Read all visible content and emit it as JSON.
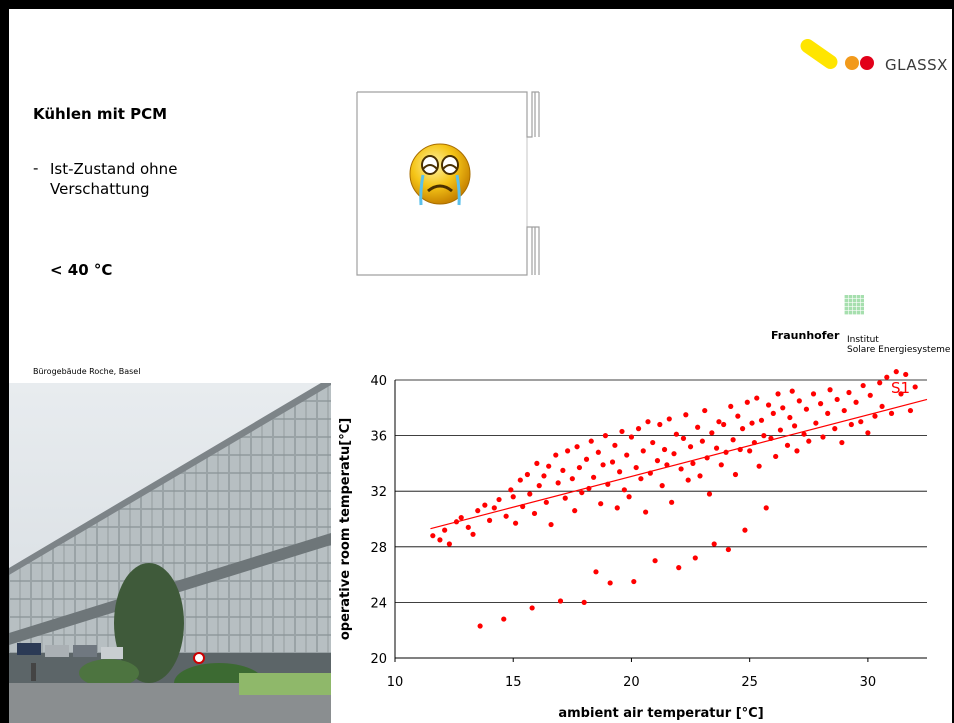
{
  "logo": {
    "text": "GLASSX"
  },
  "title": "Kühlen mit PCM",
  "bullet": {
    "dash": "-",
    "text": "Ist-Zustand ohne Verschattung"
  },
  "temp_limit": "< 40 °C",
  "fraunhofer": {
    "name": "Fraunhofer",
    "institute_line1": "Institut",
    "institute_line2": "Solare Energiesysteme"
  },
  "photo_caption": "Bürogebäude Roche, Basel",
  "chart_data": {
    "type": "scatter",
    "series": [
      {
        "name": "S1",
        "color": "#ff0000"
      }
    ],
    "xlabel": "ambient air temperatur [°C]",
    "ylabel": "operative room temperatu[°C]",
    "xlim": [
      10,
      32.5
    ],
    "ylim": [
      20,
      40
    ],
    "xticks": [
      10,
      15,
      20,
      25,
      30
    ],
    "yticks": [
      20,
      24,
      28,
      32,
      36,
      40
    ],
    "grid": "horizontal",
    "trendline": {
      "x": [
        11.5,
        32.5
      ],
      "y": [
        29.3,
        38.6
      ]
    },
    "points": [
      [
        11.6,
        28.8
      ],
      [
        11.9,
        28.5
      ],
      [
        12.1,
        29.2
      ],
      [
        12.3,
        28.2
      ],
      [
        12.6,
        29.8
      ],
      [
        12.8,
        30.1
      ],
      [
        13.1,
        29.4
      ],
      [
        13.3,
        28.9
      ],
      [
        13.5,
        30.6
      ],
      [
        13.6,
        22.3
      ],
      [
        13.8,
        31.0
      ],
      [
        14.0,
        29.9
      ],
      [
        14.2,
        30.8
      ],
      [
        14.4,
        31.4
      ],
      [
        14.6,
        22.8
      ],
      [
        14.7,
        30.2
      ],
      [
        14.9,
        32.1
      ],
      [
        15.0,
        31.6
      ],
      [
        15.1,
        29.7
      ],
      [
        15.3,
        32.8
      ],
      [
        15.4,
        30.9
      ],
      [
        15.6,
        33.2
      ],
      [
        15.7,
        31.8
      ],
      [
        15.8,
        23.6
      ],
      [
        15.9,
        30.4
      ],
      [
        16.0,
        34.0
      ],
      [
        16.1,
        32.4
      ],
      [
        16.3,
        33.1
      ],
      [
        16.4,
        31.2
      ],
      [
        16.5,
        33.8
      ],
      [
        16.6,
        29.6
      ],
      [
        16.8,
        34.6
      ],
      [
        16.9,
        32.6
      ],
      [
        17.0,
        24.1
      ],
      [
        17.1,
        33.5
      ],
      [
        17.2,
        31.5
      ],
      [
        17.3,
        34.9
      ],
      [
        17.5,
        32.9
      ],
      [
        17.6,
        30.6
      ],
      [
        17.7,
        35.2
      ],
      [
        17.8,
        33.7
      ],
      [
        17.9,
        31.9
      ],
      [
        18.0,
        24.0
      ],
      [
        18.1,
        34.3
      ],
      [
        18.2,
        32.2
      ],
      [
        18.3,
        35.6
      ],
      [
        18.4,
        33.0
      ],
      [
        18.5,
        26.2
      ],
      [
        18.6,
        34.8
      ],
      [
        18.7,
        31.1
      ],
      [
        18.8,
        33.9
      ],
      [
        18.9,
        36.0
      ],
      [
        19.0,
        32.5
      ],
      [
        19.1,
        25.4
      ],
      [
        19.2,
        34.1
      ],
      [
        19.3,
        35.3
      ],
      [
        19.4,
        30.8
      ],
      [
        19.5,
        33.4
      ],
      [
        19.6,
        36.3
      ],
      [
        19.7,
        32.1
      ],
      [
        19.8,
        34.6
      ],
      [
        19.9,
        31.6
      ],
      [
        20.0,
        35.9
      ],
      [
        20.1,
        25.5
      ],
      [
        20.2,
        33.7
      ],
      [
        20.3,
        36.5
      ],
      [
        20.4,
        32.9
      ],
      [
        20.5,
        34.9
      ],
      [
        20.6,
        30.5
      ],
      [
        20.7,
        37.0
      ],
      [
        20.8,
        33.3
      ],
      [
        20.9,
        35.5
      ],
      [
        21.0,
        27.0
      ],
      [
        21.1,
        34.2
      ],
      [
        21.2,
        36.8
      ],
      [
        21.3,
        32.4
      ],
      [
        21.4,
        35.0
      ],
      [
        21.5,
        33.9
      ],
      [
        21.6,
        37.2
      ],
      [
        21.7,
        31.2
      ],
      [
        21.8,
        34.7
      ],
      [
        21.9,
        36.1
      ],
      [
        22.0,
        26.5
      ],
      [
        22.1,
        33.6
      ],
      [
        22.2,
        35.8
      ],
      [
        22.3,
        37.5
      ],
      [
        22.4,
        32.8
      ],
      [
        22.5,
        35.2
      ],
      [
        22.6,
        34.0
      ],
      [
        22.7,
        27.2
      ],
      [
        22.8,
        36.6
      ],
      [
        22.9,
        33.1
      ],
      [
        23.0,
        35.6
      ],
      [
        23.1,
        37.8
      ],
      [
        23.2,
        34.4
      ],
      [
        23.3,
        31.8
      ],
      [
        23.4,
        36.2
      ],
      [
        23.5,
        28.2
      ],
      [
        23.6,
        35.1
      ],
      [
        23.7,
        37.0
      ],
      [
        23.8,
        33.9
      ],
      [
        23.9,
        36.8
      ],
      [
        24.0,
        34.8
      ],
      [
        24.1,
        27.8
      ],
      [
        24.2,
        38.1
      ],
      [
        24.3,
        35.7
      ],
      [
        24.4,
        33.2
      ],
      [
        24.5,
        37.4
      ],
      [
        24.6,
        35.0
      ],
      [
        24.7,
        36.5
      ],
      [
        24.8,
        29.2
      ],
      [
        24.9,
        38.4
      ],
      [
        25.0,
        34.9
      ],
      [
        25.1,
        36.9
      ],
      [
        25.2,
        35.5
      ],
      [
        25.3,
        38.7
      ],
      [
        25.4,
        33.8
      ],
      [
        25.5,
        37.1
      ],
      [
        25.6,
        36.0
      ],
      [
        25.7,
        30.8
      ],
      [
        25.8,
        38.2
      ],
      [
        25.9,
        35.8
      ],
      [
        26.0,
        37.6
      ],
      [
        26.1,
        34.5
      ],
      [
        26.2,
        39.0
      ],
      [
        26.3,
        36.4
      ],
      [
        26.4,
        38.0
      ],
      [
        26.6,
        35.3
      ],
      [
        26.7,
        37.3
      ],
      [
        26.8,
        39.2
      ],
      [
        26.9,
        36.7
      ],
      [
        27.0,
        34.9
      ],
      [
        27.1,
        38.5
      ],
      [
        27.3,
        36.1
      ],
      [
        27.4,
        37.9
      ],
      [
        27.5,
        35.6
      ],
      [
        27.7,
        39.0
      ],
      [
        27.8,
        36.9
      ],
      [
        28.0,
        38.3
      ],
      [
        28.1,
        35.9
      ],
      [
        28.3,
        37.6
      ],
      [
        28.4,
        39.3
      ],
      [
        28.6,
        36.5
      ],
      [
        28.7,
        38.6
      ],
      [
        28.9,
        35.5
      ],
      [
        29.0,
        37.8
      ],
      [
        29.2,
        39.1
      ],
      [
        29.3,
        36.8
      ],
      [
        29.5,
        38.4
      ],
      [
        29.7,
        37.0
      ],
      [
        29.8,
        39.6
      ],
      [
        30.0,
        36.2
      ],
      [
        30.1,
        38.9
      ],
      [
        30.3,
        37.4
      ],
      [
        30.5,
        39.8
      ],
      [
        30.6,
        38.1
      ],
      [
        30.8,
        40.2
      ],
      [
        31.0,
        37.6
      ],
      [
        31.2,
        40.6
      ],
      [
        31.4,
        39.0
      ],
      [
        31.6,
        40.4
      ],
      [
        31.8,
        37.8
      ],
      [
        32.0,
        39.5
      ]
    ]
  }
}
